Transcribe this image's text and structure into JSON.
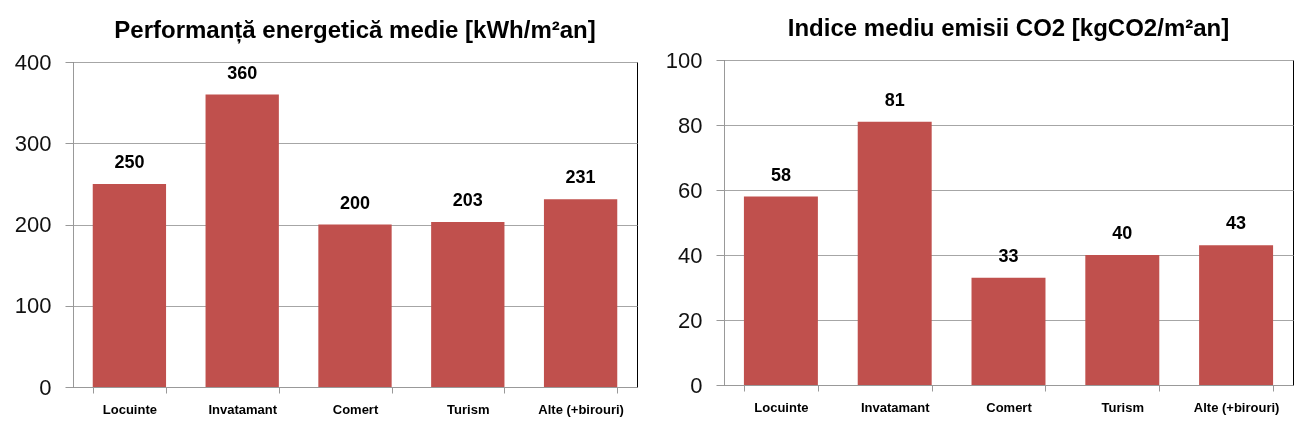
{
  "chart_data": [
    {
      "type": "bar",
      "title": "Performanță energetică medie [kWh/m²an]",
      "categories": [
        "Locuinte",
        "Invatamant",
        "Comert",
        "Turism",
        "Alte (+birouri)"
      ],
      "values": [
        250,
        360,
        200,
        203,
        231
      ],
      "color": "#c0504d",
      "ylim": [
        0,
        400
      ],
      "yticks": [
        0,
        100,
        200,
        300,
        400
      ],
      "grid": "y",
      "data_labels": true
    },
    {
      "type": "bar",
      "title": "Indice mediu emisii CO2 [kgCO2/m²an]",
      "categories": [
        "Locuinte",
        "Invatamant",
        "Comert",
        "Turism",
        "Alte (+birouri)"
      ],
      "values": [
        58,
        81,
        33,
        40,
        43
      ],
      "color": "#c0504d",
      "ylim": [
        0,
        100
      ],
      "yticks": [
        0,
        20,
        40,
        60,
        80,
        100
      ],
      "grid": "y",
      "data_labels": true
    }
  ]
}
